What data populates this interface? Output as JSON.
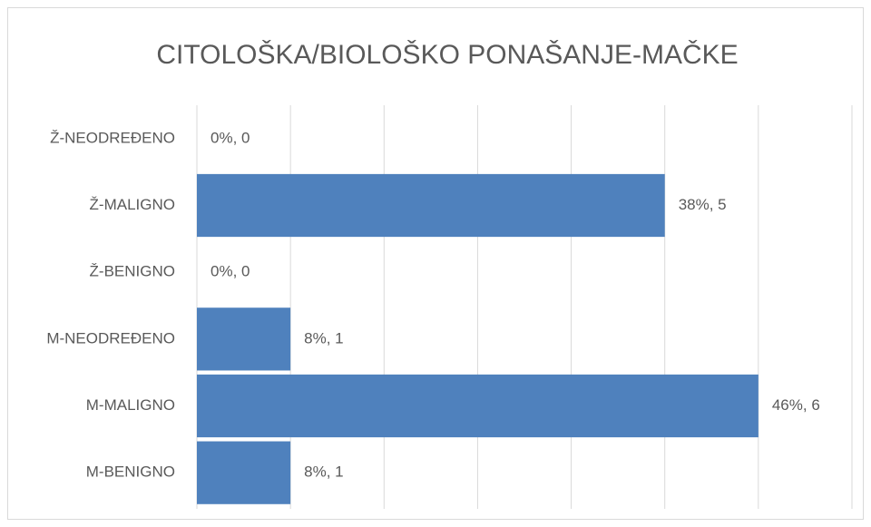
{
  "chart_data": {
    "type": "bar",
    "orientation": "horizontal",
    "title": "CITOLOŠKA/BIOLOŠKO PONAŠANJE-MAČKE",
    "categories": [
      "Ž-NEODREĐENO",
      "Ž-MALIGNO",
      "Ž-BENIGNO",
      "M-NEODREĐENO",
      "M-MALIGNO",
      "M-BENIGNO"
    ],
    "values": [
      0,
      5,
      0,
      1,
      6,
      1
    ],
    "value_labels": [
      "0%, 0",
      "38%, 5",
      "0%, 0",
      "8%, 1",
      "46%, 6",
      "8%, 1"
    ],
    "color": "#4f81bd",
    "xlim": [
      0,
      7
    ],
    "xticks": [
      0,
      1,
      2,
      3,
      4,
      5,
      6,
      7
    ],
    "grid": true
  }
}
